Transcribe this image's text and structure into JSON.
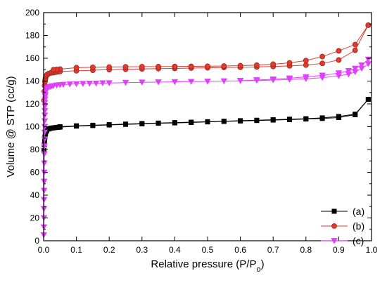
{
  "chart_data": {
    "type": "line",
    "xlabel": "Relative pressure (P/P",
    "xlabel_sub": "o",
    "xlabel_close": ")",
    "ylabel": "Volume @ STP (cc/g)",
    "xlim": [
      0,
      1.0
    ],
    "ylim": [
      0,
      200
    ],
    "x_ticks": [
      0.0,
      0.1,
      0.2,
      0.3,
      0.4,
      0.5,
      0.6,
      0.7,
      0.8,
      0.9,
      1.0
    ],
    "x_tick_labels": [
      "0.0",
      "0.1",
      "0.2",
      "0.3",
      "0.4",
      "0.5",
      "0.6",
      "0.7",
      "0.8",
      "0.9",
      "1.0"
    ],
    "y_ticks": [
      0,
      10,
      20,
      30,
      40,
      50,
      60,
      70,
      80,
      90,
      100,
      110,
      120,
      130,
      140,
      150,
      160,
      170,
      180,
      190,
      200
    ],
    "y_tick_labels": [
      "0",
      "",
      "20",
      "",
      "40",
      "",
      "60",
      "",
      "80",
      "",
      "100",
      "",
      "120",
      "",
      "140",
      "",
      "160",
      "",
      "180",
      "",
      "200"
    ],
    "grid": false,
    "legend_position": "bottom-right",
    "series": [
      {
        "name": "(a)",
        "color": "#000000",
        "marker": "square",
        "adsorption": {
          "x": [
            0.001,
            0.002,
            0.003,
            0.004,
            0.005,
            0.006,
            0.008,
            0.01,
            0.015,
            0.02,
            0.025,
            0.03,
            0.035,
            0.04,
            0.045,
            0.05,
            0.1,
            0.15,
            0.2,
            0.25,
            0.3,
            0.35,
            0.4,
            0.45,
            0.5,
            0.55,
            0.6,
            0.65,
            0.7,
            0.75,
            0.8,
            0.85,
            0.9,
            0.95,
            0.99
          ],
          "y": [
            79,
            84,
            88,
            91,
            93,
            94.5,
            96,
            97,
            98,
            98.5,
            98.8,
            99,
            99.2,
            99.4,
            99.5,
            99.6,
            100.5,
            101,
            101.5,
            102,
            102.5,
            103,
            103.3,
            103.7,
            104.2,
            104.6,
            105,
            105.4,
            105.8,
            106.2,
            106.7,
            107.2,
            108,
            110.5,
            124
          ]
        },
        "desorption": {
          "x": [
            0.99,
            0.95,
            0.9,
            0.85,
            0.8,
            0.75,
            0.7,
            0.65,
            0.6,
            0.55,
            0.5,
            0.45,
            0.4,
            0.35,
            0.3,
            0.25,
            0.2,
            0.15,
            0.1,
            0.05
          ],
          "y": [
            124,
            111,
            109,
            107.8,
            107,
            106.6,
            106.1,
            105.7,
            105.3,
            104.8,
            104.4,
            104,
            103.6,
            103.2,
            102.8,
            102.3,
            101.8,
            101.3,
            100.8,
            100
          ]
        }
      },
      {
        "name": "(b)",
        "color": "#e03a2e",
        "marker": "circle",
        "adsorption": {
          "x": [
            0.001,
            0.002,
            0.003,
            0.004,
            0.005,
            0.006,
            0.008,
            0.01,
            0.015,
            0.02,
            0.025,
            0.03,
            0.035,
            0.04,
            0.045,
            0.05,
            0.1,
            0.15,
            0.2,
            0.25,
            0.3,
            0.35,
            0.4,
            0.45,
            0.5,
            0.55,
            0.6,
            0.65,
            0.7,
            0.75,
            0.8,
            0.85,
            0.9,
            0.95,
            0.99
          ],
          "y": [
            123,
            131,
            136,
            139.5,
            141.5,
            143,
            144.5,
            145.5,
            146.5,
            147,
            147.3,
            147.5,
            147.8,
            148,
            148.2,
            148.4,
            149,
            149.5,
            150,
            150.3,
            150.6,
            150.9,
            151.1,
            151.4,
            151.6,
            151.9,
            152.1,
            152.4,
            152.8,
            153.3,
            154,
            155.5,
            158.5,
            167,
            189
          ]
        },
        "desorption": {
          "x": [
            0.99,
            0.95,
            0.9,
            0.85,
            0.8,
            0.75,
            0.7,
            0.65,
            0.6,
            0.55,
            0.5,
            0.45,
            0.4,
            0.35,
            0.3,
            0.25,
            0.2,
            0.15,
            0.1,
            0.05,
            0.04,
            0.03
          ],
          "y": [
            189,
            172,
            166.5,
            161.5,
            158,
            156,
            154.8,
            154,
            153.5,
            153.2,
            153,
            152.9,
            152.8,
            152.7,
            152.6,
            152.5,
            152.3,
            152.1,
            151.8,
            150.5,
            150.2,
            150
          ]
        }
      },
      {
        "name": "(c)",
        "color": "#e040fb",
        "marker": "triangle-down",
        "adsorption": {
          "x": [
            0.0005,
            0.0007,
            0.0009,
            0.0011,
            0.0013,
            0.0015,
            0.0017,
            0.0019,
            0.0021,
            0.0023,
            0.0025,
            0.0027,
            0.0029,
            0.0031,
            0.0033,
            0.0035,
            0.0037,
            0.0039,
            0.0041,
            0.0044,
            0.0047,
            0.005,
            0.006,
            0.008,
            0.01,
            0.015,
            0.02,
            0.025,
            0.03,
            0.04,
            0.05,
            0.06,
            0.08,
            0.1,
            0.12,
            0.14,
            0.16,
            0.18,
            0.2,
            0.25,
            0.3,
            0.35,
            0.4,
            0.45,
            0.5,
            0.55,
            0.6,
            0.65,
            0.7,
            0.75,
            0.8,
            0.85,
            0.9,
            0.93,
            0.95,
            0.97,
            0.99
          ],
          "y": [
            5,
            12,
            20,
            28,
            36,
            44,
            52,
            60,
            68,
            76,
            83,
            89,
            95,
            100,
            105,
            110,
            114,
            118,
            121,
            124,
            126.5,
            128,
            130.5,
            132.5,
            133.5,
            134.5,
            135,
            135.5,
            135.8,
            136.3,
            136.6,
            136.9,
            137.2,
            137.5,
            137.7,
            137.9,
            138,
            138.2,
            138.3,
            138.6,
            138.9,
            139.1,
            139.3,
            139.5,
            139.7,
            140,
            140.2,
            140.5,
            140.9,
            141.3,
            142,
            143,
            144.5,
            146,
            148,
            151,
            155
          ]
        },
        "desorption": {
          "x": [
            0.99,
            0.97,
            0.95,
            0.93,
            0.9,
            0.85,
            0.8,
            0.75,
            0.7,
            0.65,
            0.6
          ],
          "y": [
            159,
            154,
            151,
            149,
            147,
            145,
            143.6,
            142.5,
            141.6,
            140.9,
            140.4
          ]
        }
      }
    ]
  }
}
